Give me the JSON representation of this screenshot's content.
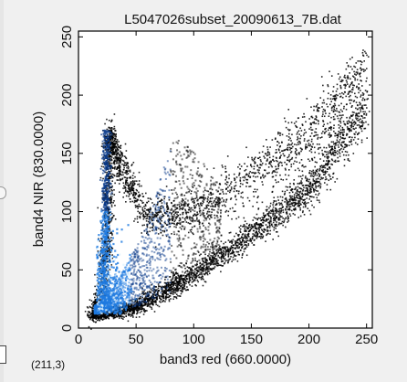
{
  "window": {
    "title": "L5047026subset_20090613_7B.dat",
    "cursor_readout": "(211,3)"
  },
  "colors": {
    "background": "#f0f0f0",
    "plot_background": "#ffffff",
    "density_low": "#000000",
    "density_mid": "#0a3a8a",
    "density_high": "#1f7ae0",
    "density_peak": "#dff3ff"
  },
  "chart_data": {
    "type": "heatmap",
    "title": "L5047026subset_20090613_7B.dat",
    "xlabel": "band3 red (660.0000)",
    "ylabel": "band4 NIR (830.0000)",
    "xlim": [
      0,
      255
    ],
    "ylim": [
      0,
      255
    ],
    "xticks": [
      "0",
      "50",
      "100",
      "150",
      "200",
      "250"
    ],
    "yticks": [
      "0",
      "50",
      "100",
      "150",
      "200",
      "250"
    ],
    "grid": false,
    "description_series": [
      {
        "name": "",
        "points": [
          [
            12,
            8
          ],
          [
            20,
            30
          ],
          [
            25,
            80
          ],
          [
            27,
            168
          ],
          [
            35,
            140
          ],
          [
            60,
            95
          ],
          [
            100,
            100
          ],
          [
            150,
            130
          ],
          [
            200,
            165
          ],
          [
            250,
            225
          ]
        ]
      },
      {
        "name": "",
        "points": [
          [
            15,
            10
          ],
          [
            50,
            18
          ],
          [
            90,
            40
          ],
          [
            150,
            80
          ],
          [
            200,
            120
          ],
          [
            250,
            190
          ]
        ]
      }
    ]
  }
}
